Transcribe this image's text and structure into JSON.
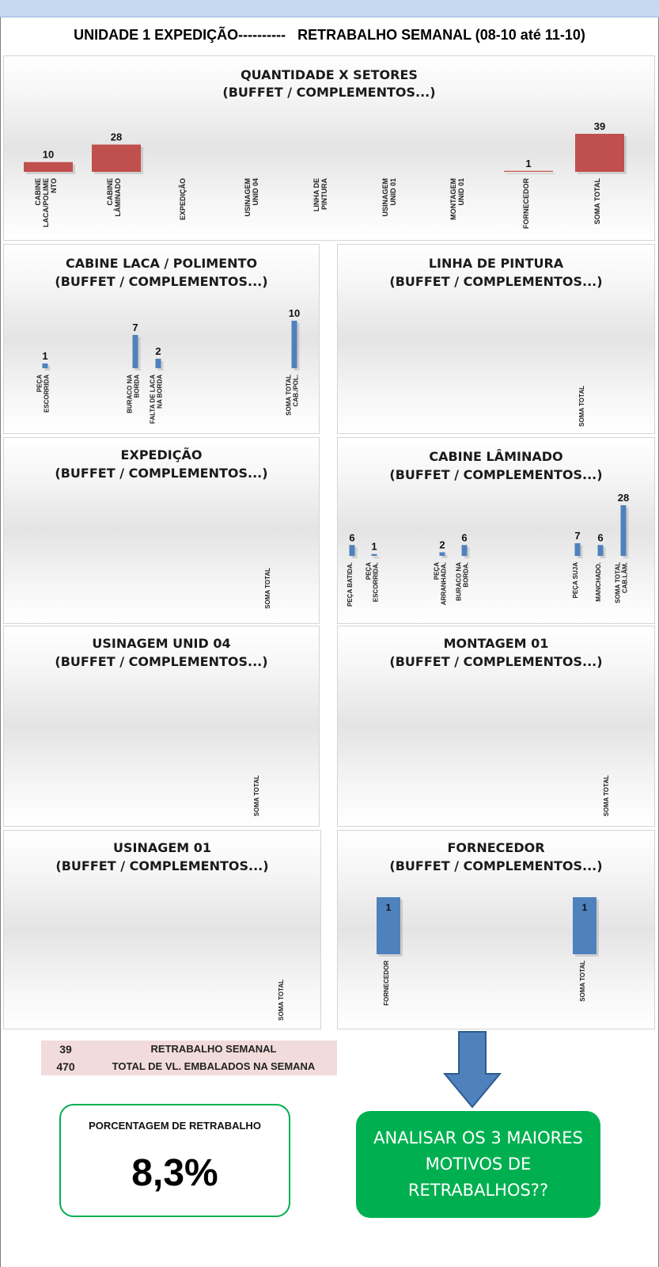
{
  "header": {
    "title_left": "UNIDADE 1 EXPEDIÇÃO----------",
    "title_right": "RETRABALHO SEMANAL (08-10 até 11-10)"
  },
  "chart_data": [
    {
      "type": "bar",
      "title": "QUANTIDADE X SETORES",
      "subtitle": "(BUFFET / COMPLEMENTOS...)",
      "categories": [
        "CABINE LACA/POLIMENTO",
        "CABINE LÂMINADO",
        "EXPEDIÇÃO",
        "USINAGEM UNID 04",
        "LINHA DE PINTURA",
        "USINAGEM UNID 01",
        "MONTAGEM UNID 01",
        "FORNECEDOR",
        "SOMA TOTAL"
      ],
      "category_lines": [
        [
          "CABINE",
          "LACA/POLIME",
          "NTO"
        ],
        [
          "CABINE",
          "LÂMINADO"
        ],
        [
          "EXPEDIÇÃO"
        ],
        [
          "USINAGEM",
          "UNID 04"
        ],
        [
          "LINHA DE",
          "PINTURA"
        ],
        [
          "USINAGEM",
          "UNID 01"
        ],
        [
          "MONTAGEM",
          "UNID 01"
        ],
        [
          "FORNECEDOR"
        ],
        [
          "SOMA TOTAL"
        ]
      ],
      "values": [
        10,
        28,
        null,
        null,
        null,
        null,
        null,
        1,
        39
      ],
      "color": "#c0504d"
    },
    {
      "type": "bar",
      "title": "CABINE LACA / POLIMENTO",
      "subtitle": "(BUFFET / COMPLEMENTOS...)",
      "categories": [
        "PEÇA ESCORRIDA",
        "",
        "",
        "BURACO NA BORDA",
        "FALTA DE LACA NA BORDA",
        "",
        "",
        "",
        "",
        "",
        "SOMA TOTAL CAB./POL."
      ],
      "category_lines": [
        [
          "PEÇA",
          "ESCORRIDA"
        ],
        [],
        [],
        [
          "BURACO NA",
          "BORDA"
        ],
        [
          "FALTA DE LACA",
          "NA BORDA"
        ],
        [],
        [],
        [],
        [],
        [],
        [
          "SOMA TOTAL",
          "CAB./POL."
        ]
      ],
      "values": [
        1,
        null,
        null,
        7,
        2,
        null,
        null,
        null,
        null,
        null,
        10
      ],
      "color": "#4f81bd"
    },
    {
      "type": "bar",
      "title": "LINHA DE PINTURA",
      "subtitle": "(BUFFET / COMPLEMENTOS...)",
      "categories": [
        "SOMA TOTAL"
      ],
      "category_lines": [
        [
          "SOMA TOTAL"
        ]
      ],
      "values": [
        null
      ],
      "color": "#4f81bd"
    },
    {
      "type": "bar",
      "title": "EXPEDIÇÃO",
      "subtitle": "(BUFFET / COMPLEMENTOS...)",
      "categories": [
        "SOMA TOTAL"
      ],
      "category_lines": [
        [
          "SOMA TOTAL"
        ]
      ],
      "values": [
        null
      ],
      "color": "#4f81bd"
    },
    {
      "type": "bar",
      "title": "CABINE LÂMINADO",
      "subtitle": "(BUFFET / COMPLEMENTOS...)",
      "categories": [
        "PEÇA BATIDA.",
        "PEÇA ESCORRIDA.",
        "",
        "",
        "PEÇA ARRANHADA.",
        "BURACO NA BORDA.",
        "",
        "",
        "",
        "PEÇA SUJA",
        "MANCHADO.",
        "SOMA TOTAL CAB.LÂM."
      ],
      "category_lines": [
        [
          "PEÇA BATIDA."
        ],
        [
          "PEÇA",
          "ESCORRIDA."
        ],
        [],
        [],
        [
          "PEÇA",
          "ARRANHADA."
        ],
        [
          "BURACO NA",
          "BORDA."
        ],
        [],
        [],
        [],
        [
          "PEÇA SUJA"
        ],
        [
          "MANCHADO."
        ],
        [
          "SOMA TOTAL",
          "CAB.LÂM."
        ]
      ],
      "values": [
        6,
        1,
        null,
        null,
        2,
        6,
        null,
        null,
        null,
        7,
        6,
        28
      ],
      "color": "#4f81bd"
    },
    {
      "type": "bar",
      "title": "USINAGEM UNID 04",
      "subtitle": "(BUFFET / COMPLEMENTOS...)",
      "categories": [
        "SOMA TOTAL"
      ],
      "category_lines": [
        [
          "SOMA TOTAL"
        ]
      ],
      "values": [
        null
      ],
      "color": "#4f81bd"
    },
    {
      "type": "bar",
      "title": "MONTAGEM 01",
      "subtitle": "(BUFFET / COMPLEMENTOS...)",
      "categories": [
        "SOMA TOTAL"
      ],
      "category_lines": [
        [
          "SOMA TOTAL"
        ]
      ],
      "values": [
        null
      ],
      "color": "#4f81bd"
    },
    {
      "type": "bar",
      "title": "USINAGEM 01",
      "subtitle": "(BUFFET / COMPLEMENTOS...)",
      "categories": [
        "SOMA TOTAL"
      ],
      "category_lines": [
        [
          "SOMA TOTAL"
        ]
      ],
      "values": [
        null
      ],
      "color": "#4f81bd"
    },
    {
      "type": "bar",
      "title": "FORNECEDOR",
      "subtitle": "(BUFFET / COMPLEMENTOS...)",
      "categories": [
        "FORNECEDOR",
        "SOMA TOTAL"
      ],
      "category_lines": [
        [
          "FORNECEDOR"
        ],
        [
          "SOMA TOTAL"
        ]
      ],
      "values": [
        1,
        1
      ],
      "color": "#4f81bd"
    }
  ],
  "summary": {
    "row1_value": "39",
    "row1_label": "RETRABALHO SEMANAL",
    "row2_value": "470",
    "row2_label": "TOTAL DE VL. EMBALADOS NA SEMANA"
  },
  "percentage": {
    "label": "PORCENTAGEM DE RETRABALHO",
    "value": "8,3%"
  },
  "action": {
    "line1": "ANALISAR OS 3 MAIORES",
    "line2": "MOTIVOS DE",
    "line3": "RETRABALHOS??"
  },
  "colors": {
    "main_bar": "#c0504d",
    "detail_bar": "#4f81bd",
    "accent_green": "#00b050",
    "arrow": "#4f81bd",
    "summary_bg": "#f2dcdb"
  }
}
